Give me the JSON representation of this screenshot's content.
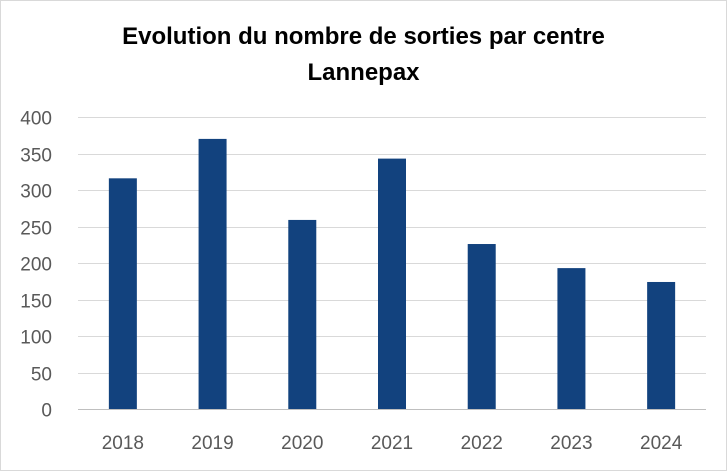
{
  "chart_data": {
    "type": "bar",
    "title_lines": [
      "Evolution du nombre de sorties par centre",
      "Lannepax"
    ],
    "categories": [
      "2018",
      "2019",
      "2020",
      "2021",
      "2022",
      "2023",
      "2024"
    ],
    "values": [
      316,
      370,
      259,
      343,
      226,
      193,
      174
    ],
    "xlabel": "",
    "ylabel": "",
    "ylim": [
      0,
      400
    ],
    "yticks": [
      0,
      50,
      100,
      150,
      200,
      250,
      300,
      350,
      400
    ],
    "grid": true,
    "legend": "none",
    "colors": {
      "bar": "#12427e",
      "grid": "#d9d9d9",
      "axis": "#bfbfbf",
      "text": "#595959"
    }
  }
}
